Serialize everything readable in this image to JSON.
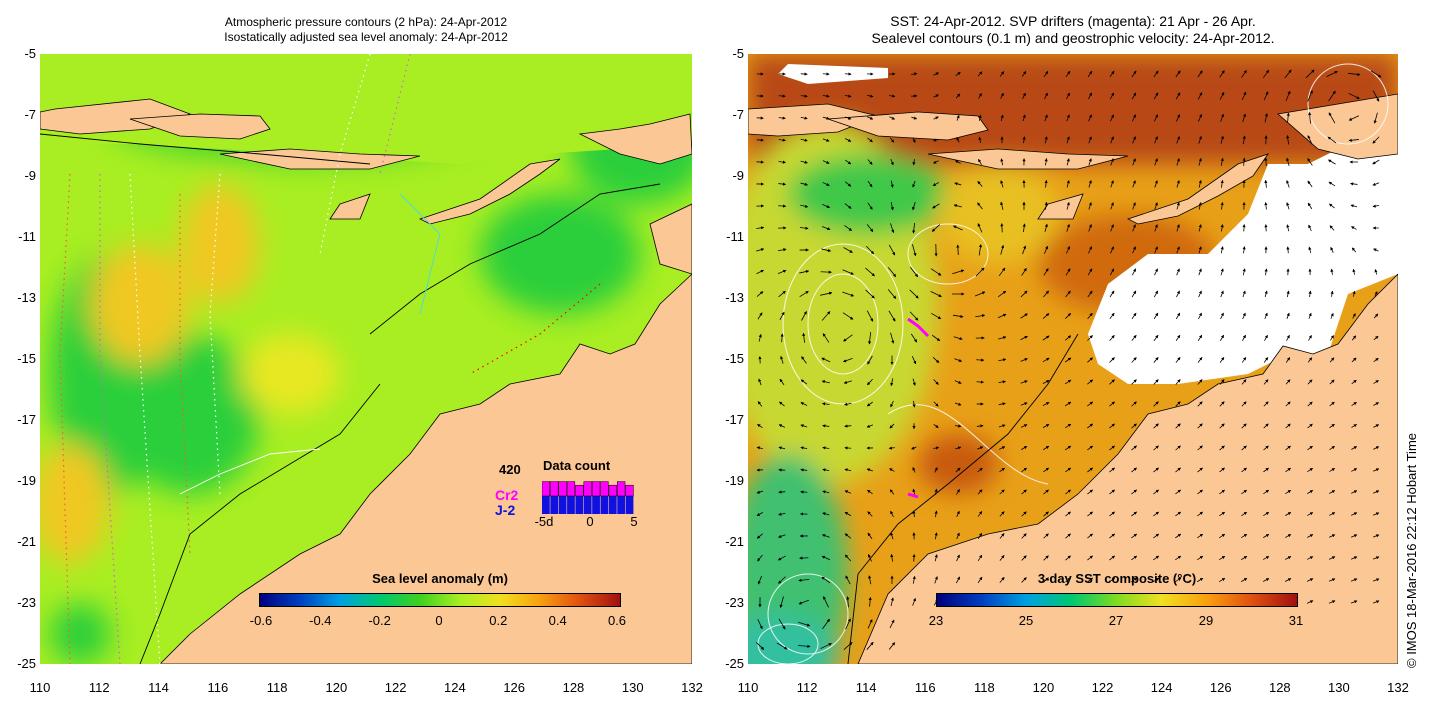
{
  "left": {
    "title1": "Atmospheric pressure contours (2 hPa): 24-Apr-2012",
    "title2": "Isostatically adjusted sea level anomaly: 24-Apr-2012",
    "colorbar": {
      "label": "Sea level anomaly (m)",
      "ticks": [
        "-0.6",
        "-0.4",
        "-0.2",
        "0",
        "0.2",
        "0.4",
        "0.6"
      ]
    },
    "datacount": {
      "total": "420",
      "title": "Data count",
      "series1": "Cr2",
      "series2": "J-2",
      "xticks": [
        "-5d",
        "0",
        "5"
      ],
      "cr2_values": [
        4,
        4,
        4,
        4,
        3,
        4,
        4,
        4,
        3,
        4,
        3
      ],
      "j2_values": [
        5,
        5,
        5,
        5,
        5,
        5,
        5,
        5,
        5,
        5,
        5
      ]
    }
  },
  "right": {
    "title1": "SST: 24-Apr-2012. SVP drifters (magenta): 21 Apr - 26 Apr.",
    "title2": "Sealevel contours (0.1 m) and geostrophic velocity: 24-Apr-2012.",
    "colorbar": {
      "label": "3-day SST composite (°C)",
      "ticks": [
        "23",
        "25",
        "27",
        "29",
        "31"
      ]
    }
  },
  "axes": {
    "x_ticks": [
      "110",
      "112",
      "114",
      "116",
      "118",
      "120",
      "122",
      "124",
      "126",
      "128",
      "130",
      "132"
    ],
    "y_ticks": [
      "-5",
      "-7",
      "-9",
      "-11",
      "-13",
      "-15",
      "-17",
      "-19",
      "-21",
      "-23",
      "-25"
    ],
    "lon_range": [
      110,
      132
    ],
    "lat_range": [
      -25,
      -5
    ]
  },
  "credit": "© IMOS 18-Mar-2016 22:12 Hobart Time",
  "colors": {
    "land": "#fbc795",
    "sla_low": "#1fc241",
    "sla_mid": "#a8ee22",
    "sla_high": "#f8c818",
    "sst_warm": "#e88a18",
    "sst_hot": "#b34010",
    "drifter": "#ff00ff"
  }
}
